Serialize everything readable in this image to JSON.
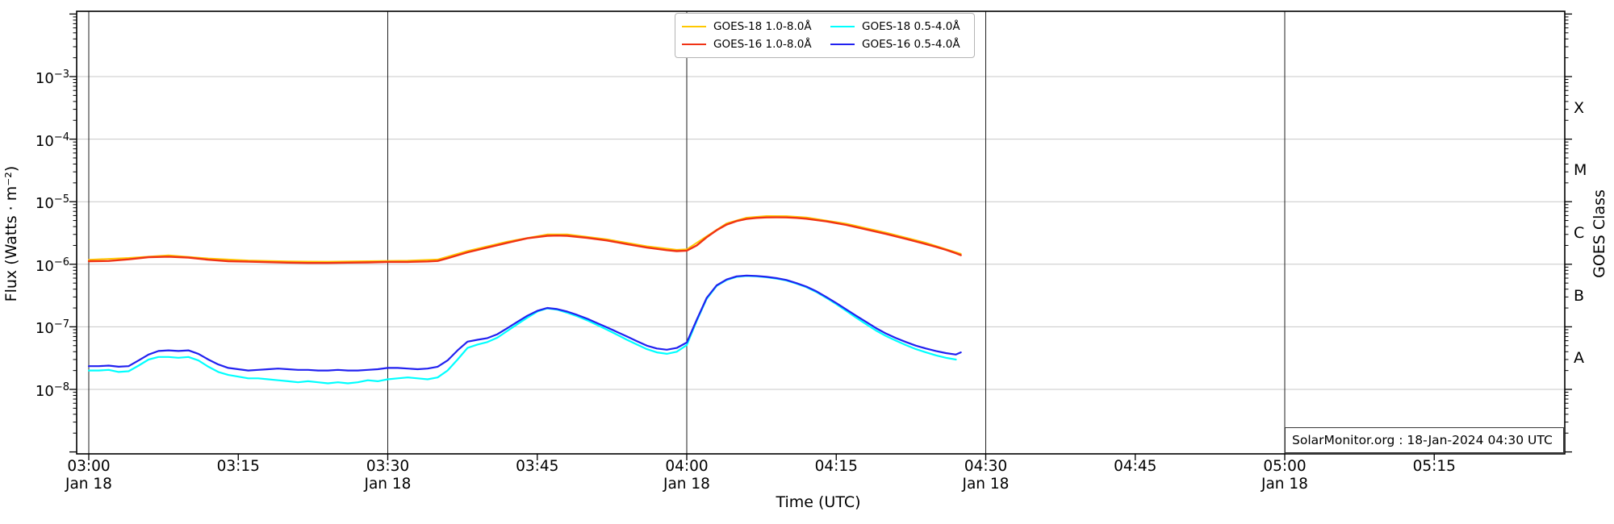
{
  "figure": {
    "xlabel": "Time (UTC)",
    "ylabel_left": "Flux (Watts · m⁻²)",
    "ylabel_right": "GOES Class",
    "annotation": "SolarMonitor.org : 18-Jan-2024 04:30 UTC"
  },
  "legend": {
    "items": [
      {
        "label": "GOES-18 1.0-8.0Å",
        "color": "#ffc800"
      },
      {
        "label": "GOES-16 1.0-8.0Å",
        "color": "#f03214"
      },
      {
        "label": "GOES-18 0.5-4.0Å",
        "color": "#00ffff"
      },
      {
        "label": "GOES-16 0.5-4.0Å",
        "color": "#2121f0"
      }
    ]
  },
  "chart_data": {
    "type": "line",
    "title": "",
    "xlabel": "Time (UTC)",
    "ylabel": "Flux (Watts · m⁻²)",
    "ylabel_right": "GOES Class",
    "yscale": "log",
    "ylim": [
      1e-09,
      0.01
    ],
    "grid": "horizontal decade gridlines + vertical lines at 30-min ticks",
    "legend_position": "upper center, 2 columns",
    "x_unit": "minutes after 03:00 UTC, Jan 18 2024",
    "y_tick_exponents": [
      -3,
      -4,
      -5,
      -6,
      -7,
      -8
    ],
    "x_ticks": [
      {
        "min": 0,
        "time": "03:00",
        "date": "Jan 18"
      },
      {
        "min": 15,
        "time": "03:15"
      },
      {
        "min": 30,
        "time": "03:30",
        "date": "Jan 18"
      },
      {
        "min": 45,
        "time": "03:45"
      },
      {
        "min": 60,
        "time": "04:00",
        "date": "Jan 18"
      },
      {
        "min": 75,
        "time": "04:15"
      },
      {
        "min": 90,
        "time": "04:30",
        "date": "Jan 18"
      },
      {
        "min": 105,
        "time": "04:45"
      },
      {
        "min": 120,
        "time": "05:00",
        "date": "Jan 18"
      },
      {
        "min": 135,
        "time": "05:15"
      }
    ],
    "vertical_line_minutes": [
      0,
      30,
      60,
      90,
      120
    ],
    "goes_classes": [
      {
        "label": "X",
        "between_exponents": [
          -4,
          -3
        ]
      },
      {
        "label": "M",
        "between_exponents": [
          -5,
          -4
        ]
      },
      {
        "label": "C",
        "between_exponents": [
          -6,
          -5
        ]
      },
      {
        "label": "B",
        "between_exponents": [
          -7,
          -6
        ]
      },
      {
        "label": "A",
        "between_exponents": [
          -8,
          -7
        ]
      }
    ],
    "series": [
      {
        "name": "GOES-18 1.0-8.0Å",
        "color": "#ffc800",
        "width": 2.0,
        "points": [
          [
            0,
            1.18e-06
          ],
          [
            4,
            1.26e-06
          ],
          [
            8,
            1.39e-06
          ],
          [
            12,
            1.24e-06
          ],
          [
            16,
            1.15e-06
          ],
          [
            20,
            1.11e-06
          ],
          [
            24,
            1.1e-06
          ],
          [
            28,
            1.12e-06
          ],
          [
            32,
            1.14e-06
          ],
          [
            35,
            1.19e-06
          ],
          [
            38,
            1.63e-06
          ],
          [
            42,
            2.3e-06
          ],
          [
            46,
            3e-06
          ],
          [
            48,
            3e-06
          ],
          [
            52,
            2.5e-06
          ],
          [
            56,
            1.94e-06
          ],
          [
            59,
            1.7e-06
          ],
          [
            60,
            1.73e-06
          ],
          [
            62,
            2.8e-06
          ],
          [
            64,
            4.5e-06
          ],
          [
            66,
            5.55e-06
          ],
          [
            68,
            5.9e-06
          ],
          [
            70,
            5.88e-06
          ],
          [
            72,
            5.6e-06
          ],
          [
            76,
            4.45e-06
          ],
          [
            80,
            3.2e-06
          ],
          [
            84,
            2.2e-06
          ],
          [
            87.5,
            1.47e-06
          ]
        ]
      },
      {
        "name": "GOES-16 1.0-8.0Å",
        "color": "#f03214",
        "width": 2.4,
        "points": [
          [
            0,
            1.12e-06
          ],
          [
            2,
            1.13e-06
          ],
          [
            4,
            1.2e-06
          ],
          [
            6,
            1.3e-06
          ],
          [
            8,
            1.32e-06
          ],
          [
            10,
            1.28e-06
          ],
          [
            12,
            1.18e-06
          ],
          [
            14,
            1.12e-06
          ],
          [
            16,
            1.1e-06
          ],
          [
            18,
            1.08e-06
          ],
          [
            20,
            1.06e-06
          ],
          [
            22,
            1.05e-06
          ],
          [
            24,
            1.05e-06
          ],
          [
            26,
            1.06e-06
          ],
          [
            28,
            1.07e-06
          ],
          [
            30,
            1.09e-06
          ],
          [
            32,
            1.09e-06
          ],
          [
            34,
            1.11e-06
          ],
          [
            35,
            1.13e-06
          ],
          [
            36,
            1.25e-06
          ],
          [
            38,
            1.55e-06
          ],
          [
            40,
            1.85e-06
          ],
          [
            42,
            2.2e-06
          ],
          [
            44,
            2.6e-06
          ],
          [
            46,
            2.85e-06
          ],
          [
            47,
            2.88e-06
          ],
          [
            48,
            2.85e-06
          ],
          [
            50,
            2.65e-06
          ],
          [
            52,
            2.4e-06
          ],
          [
            54,
            2.1e-06
          ],
          [
            56,
            1.85e-06
          ],
          [
            58,
            1.68e-06
          ],
          [
            59,
            1.62e-06
          ],
          [
            60,
            1.65e-06
          ],
          [
            61,
            2e-06
          ],
          [
            62,
            2.7e-06
          ],
          [
            63,
            3.5e-06
          ],
          [
            64,
            4.3e-06
          ],
          [
            65,
            4.9e-06
          ],
          [
            66,
            5.3e-06
          ],
          [
            67,
            5.5e-06
          ],
          [
            68,
            5.6e-06
          ],
          [
            69,
            5.62e-06
          ],
          [
            70,
            5.6e-06
          ],
          [
            71,
            5.5e-06
          ],
          [
            72,
            5.35e-06
          ],
          [
            74,
            4.85e-06
          ],
          [
            76,
            4.25e-06
          ],
          [
            78,
            3.6e-06
          ],
          [
            80,
            3.05e-06
          ],
          [
            82,
            2.55e-06
          ],
          [
            84,
            2.1e-06
          ],
          [
            85,
            1.9e-06
          ],
          [
            86,
            1.7e-06
          ],
          [
            87,
            1.5e-06
          ],
          [
            87.5,
            1.4e-06
          ]
        ]
      },
      {
        "name": "GOES-18 0.5-4.0Å",
        "color": "#00ffff",
        "width": 2.2,
        "points": [
          [
            0,
            2e-08
          ],
          [
            1,
            2e-08
          ],
          [
            2,
            2.05e-08
          ],
          [
            3,
            1.9e-08
          ],
          [
            4,
            1.95e-08
          ],
          [
            5,
            2.4e-08
          ],
          [
            6,
            3e-08
          ],
          [
            7,
            3.3e-08
          ],
          [
            8,
            3.3e-08
          ],
          [
            9,
            3.2e-08
          ],
          [
            10,
            3.3e-08
          ],
          [
            11,
            2.9e-08
          ],
          [
            12,
            2.3e-08
          ],
          [
            13,
            1.9e-08
          ],
          [
            14,
            1.7e-08
          ],
          [
            15,
            1.6e-08
          ],
          [
            16,
            1.5e-08
          ],
          [
            17,
            1.5e-08
          ],
          [
            18,
            1.45e-08
          ],
          [
            19,
            1.4e-08
          ],
          [
            20,
            1.35e-08
          ],
          [
            21,
            1.3e-08
          ],
          [
            22,
            1.35e-08
          ],
          [
            23,
            1.3e-08
          ],
          [
            24,
            1.25e-08
          ],
          [
            25,
            1.3e-08
          ],
          [
            26,
            1.25e-08
          ],
          [
            27,
            1.3e-08
          ],
          [
            28,
            1.4e-08
          ],
          [
            29,
            1.35e-08
          ],
          [
            30,
            1.45e-08
          ],
          [
            31,
            1.5e-08
          ],
          [
            32,
            1.55e-08
          ],
          [
            33,
            1.5e-08
          ],
          [
            34,
            1.45e-08
          ],
          [
            35,
            1.55e-08
          ],
          [
            36,
            2e-08
          ],
          [
            37,
            3e-08
          ],
          [
            38,
            4.6e-08
          ],
          [
            39,
            5.2e-08
          ],
          [
            40,
            5.7e-08
          ],
          [
            41,
            6.7e-08
          ],
          [
            42,
            8.6e-08
          ],
          [
            43,
            1.1e-07
          ],
          [
            44,
            1.4e-07
          ],
          [
            45,
            1.75e-07
          ],
          [
            46,
            1.97e-07
          ],
          [
            47,
            1.88e-07
          ],
          [
            48,
            1.68e-07
          ],
          [
            49,
            1.48e-07
          ],
          [
            50,
            1.27e-07
          ],
          [
            51,
            1.07e-07
          ],
          [
            52,
            9e-08
          ],
          [
            53,
            7.5e-08
          ],
          [
            54,
            6.2e-08
          ],
          [
            55,
            5.2e-08
          ],
          [
            56,
            4.4e-08
          ],
          [
            57,
            3.9e-08
          ],
          [
            58,
            3.7e-08
          ],
          [
            59,
            4e-08
          ],
          [
            60,
            5.1e-08
          ],
          [
            61,
            1.25e-07
          ],
          [
            62,
            2.8e-07
          ],
          [
            63,
            4.5e-07
          ],
          [
            64,
            5.6e-07
          ],
          [
            65,
            6.3e-07
          ],
          [
            66,
            6.5e-07
          ],
          [
            67,
            6.4e-07
          ],
          [
            68,
            6.2e-07
          ],
          [
            69,
            5.9e-07
          ],
          [
            70,
            5.5e-07
          ],
          [
            71,
            4.9e-07
          ],
          [
            72,
            4.3e-07
          ],
          [
            73,
            3.6e-07
          ],
          [
            74,
            2.9e-07
          ],
          [
            75,
            2.3e-07
          ],
          [
            76,
            1.8e-07
          ],
          [
            77,
            1.4e-07
          ],
          [
            78,
            1.1e-07
          ],
          [
            79,
            8.7e-08
          ],
          [
            80,
            7.1e-08
          ],
          [
            81,
            6e-08
          ],
          [
            82,
            5.1e-08
          ],
          [
            83,
            4.4e-08
          ],
          [
            84,
            3.9e-08
          ],
          [
            85,
            3.5e-08
          ],
          [
            86,
            3.2e-08
          ],
          [
            87,
            3e-08
          ]
        ]
      },
      {
        "name": "GOES-16 0.5-4.0Å",
        "color": "#2121f0",
        "width": 2.2,
        "points": [
          [
            0,
            2.35e-08
          ],
          [
            1,
            2.35e-08
          ],
          [
            2,
            2.4e-08
          ],
          [
            3,
            2.3e-08
          ],
          [
            4,
            2.35e-08
          ],
          [
            5,
            2.9e-08
          ],
          [
            6,
            3.6e-08
          ],
          [
            7,
            4.1e-08
          ],
          [
            8,
            4.2e-08
          ],
          [
            9,
            4.1e-08
          ],
          [
            10,
            4.2e-08
          ],
          [
            11,
            3.7e-08
          ],
          [
            12,
            3e-08
          ],
          [
            13,
            2.5e-08
          ],
          [
            14,
            2.2e-08
          ],
          [
            15,
            2.1e-08
          ],
          [
            16,
            2e-08
          ],
          [
            17,
            2.05e-08
          ],
          [
            18,
            2.1e-08
          ],
          [
            19,
            2.15e-08
          ],
          [
            20,
            2.1e-08
          ],
          [
            21,
            2.05e-08
          ],
          [
            22,
            2.05e-08
          ],
          [
            23,
            2e-08
          ],
          [
            24,
            2e-08
          ],
          [
            25,
            2.05e-08
          ],
          [
            26,
            2e-08
          ],
          [
            27,
            2e-08
          ],
          [
            28,
            2.05e-08
          ],
          [
            29,
            2.1e-08
          ],
          [
            30,
            2.2e-08
          ],
          [
            31,
            2.2e-08
          ],
          [
            32,
            2.15e-08
          ],
          [
            33,
            2.1e-08
          ],
          [
            34,
            2.15e-08
          ],
          [
            35,
            2.3e-08
          ],
          [
            36,
            2.9e-08
          ],
          [
            37,
            4.2e-08
          ],
          [
            38,
            5.8e-08
          ],
          [
            39,
            6.2e-08
          ],
          [
            40,
            6.6e-08
          ],
          [
            41,
            7.6e-08
          ],
          [
            42,
            9.5e-08
          ],
          [
            43,
            1.2e-07
          ],
          [
            44,
            1.5e-07
          ],
          [
            45,
            1.8e-07
          ],
          [
            46,
            2e-07
          ],
          [
            47,
            1.92e-07
          ],
          [
            48,
            1.75e-07
          ],
          [
            49,
            1.55e-07
          ],
          [
            50,
            1.35e-07
          ],
          [
            51,
            1.15e-07
          ],
          [
            52,
            9.8e-08
          ],
          [
            53,
            8.3e-08
          ],
          [
            54,
            7e-08
          ],
          [
            55,
            5.9e-08
          ],
          [
            56,
            5e-08
          ],
          [
            57,
            4.5e-08
          ],
          [
            58,
            4.3e-08
          ],
          [
            59,
            4.6e-08
          ],
          [
            60,
            5.6e-08
          ],
          [
            61,
            1.3e-07
          ],
          [
            62,
            2.9e-07
          ],
          [
            63,
            4.6e-07
          ],
          [
            64,
            5.7e-07
          ],
          [
            65,
            6.4e-07
          ],
          [
            66,
            6.6e-07
          ],
          [
            67,
            6.5e-07
          ],
          [
            68,
            6.3e-07
          ],
          [
            69,
            6e-07
          ],
          [
            70,
            5.6e-07
          ],
          [
            71,
            5e-07
          ],
          [
            72,
            4.4e-07
          ],
          [
            73,
            3.7e-07
          ],
          [
            74,
            3e-07
          ],
          [
            75,
            2.4e-07
          ],
          [
            76,
            1.9e-07
          ],
          [
            77,
            1.5e-07
          ],
          [
            78,
            1.2e-07
          ],
          [
            79,
            9.5e-08
          ],
          [
            80,
            7.8e-08
          ],
          [
            81,
            6.6e-08
          ],
          [
            82,
            5.7e-08
          ],
          [
            83,
            5e-08
          ],
          [
            84,
            4.5e-08
          ],
          [
            85,
            4.1e-08
          ],
          [
            86,
            3.8e-08
          ],
          [
            87,
            3.6e-08
          ],
          [
            87.5,
            3.9e-08
          ]
        ]
      }
    ]
  }
}
